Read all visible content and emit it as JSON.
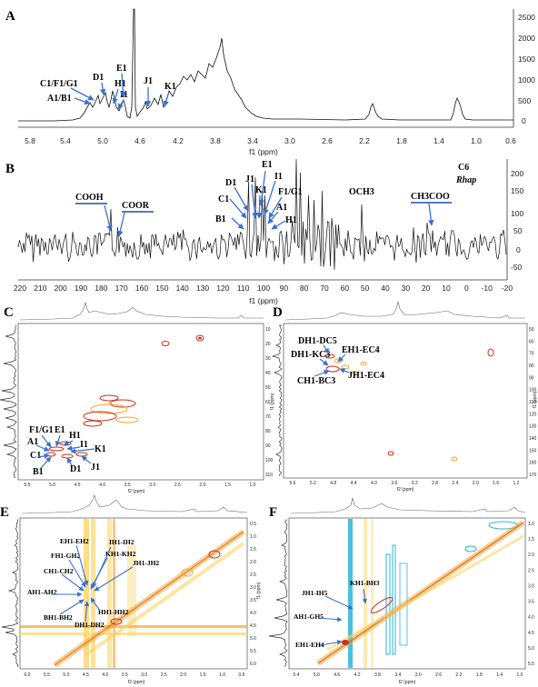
{
  "panels": {
    "A": {
      "letter": "A",
      "xticks": [
        "5.8",
        "5.4",
        "5.0",
        "4.6",
        "4.2",
        "3.8",
        "3.4",
        "3.0",
        "2.6",
        "2.2",
        "1.8",
        "1.4",
        "1.0",
        "0.6"
      ],
      "yticks": [
        "2500",
        "2000",
        "1500",
        "1000",
        "500",
        "0"
      ],
      "xlabel": "f1  (ppm)",
      "peaks": [
        "C1/F1/G1",
        "A1/B1",
        "D1",
        "H1",
        "I1",
        "E1",
        "J1",
        "K1"
      ]
    },
    "B": {
      "letter": "B",
      "xticks": [
        "220",
        "210",
        "200",
        "190",
        "180",
        "170",
        "160",
        "150",
        "140",
        "130",
        "120",
        "110",
        "100",
        "90",
        "80",
        "70",
        "60",
        "50",
        "40",
        "30",
        "20",
        "10",
        "0",
        "-10",
        "-20"
      ],
      "yticks": [
        "200",
        "150",
        "100",
        "50",
        "0",
        "-50"
      ],
      "xlabel": "f1  (ppm)",
      "labels": {
        "cooh": "COOH",
        "coor": "COOR",
        "och3": "OCH3",
        "ch3coo": "CH3COO",
        "c6": "C6",
        "rhap": "Rhap",
        "b1": "B1",
        "c1": "C1",
        "d1": "D1",
        "j1": "J1",
        "k1": "K1",
        "e1": "E1",
        "i1": "I1",
        "fg1": "F1/G1",
        "a1": "A1",
        "h1": "H1"
      }
    },
    "C": {
      "letter": "C",
      "xticks": [
        "5.5",
        "5.0",
        "4.5",
        "4.0",
        "3.5",
        "3.0",
        "2.5",
        "2.0",
        "1.5",
        "1.0"
      ],
      "xlabel": "f2 (ppm)",
      "yticks": [
        "10",
        "20",
        "30",
        "40",
        "50",
        "60",
        "70",
        "80",
        "90",
        "100",
        "110"
      ],
      "ylabel": "f1 (ppm)",
      "labels": [
        "F1/G1",
        "E1",
        "H1",
        "A1",
        "I1",
        "K1",
        "C1",
        "D1",
        "B1",
        "J1"
      ]
    },
    "D": {
      "letter": "D",
      "xticks": [
        "5.6",
        "5.2",
        "4.8",
        "4.4",
        "4.0",
        "3.6",
        "3.2",
        "2.8",
        "2.4",
        "2.0",
        "1.6",
        "1.2"
      ],
      "xlabel": "f2 (ppm)",
      "yticks": [
        "50",
        "60",
        "70",
        "80",
        "90",
        "100",
        "110",
        "120",
        "130",
        "140",
        "150",
        "160",
        "170"
      ],
      "ylabel": "f1 (ppm)",
      "labels": [
        "DH1-DC5",
        "DH1-KC3",
        "EH1-EC4",
        "JH1-EC4",
        "CH1-BC3"
      ]
    },
    "E": {
      "letter": "E",
      "xticks": [
        "6.0",
        "5.5",
        "5.0",
        "4.5",
        "4.0",
        "3.5",
        "3.0",
        "2.5",
        "2.0",
        "1.5",
        "1.0",
        "0.5"
      ],
      "xlabel": "f2 (ppm)",
      "yticks": [
        "0.5",
        "1.0",
        "1.5",
        "2.0",
        "2.5",
        "3.0",
        "3.5",
        "4.0",
        "4.5",
        "5.0",
        "5.5",
        "6.0"
      ],
      "ylabel": "f1 (ppm)",
      "labels": [
        "EH1-EH2",
        "FH1-GH2",
        "IH1-IH2",
        "KH1-KH2",
        "JH1-JH2",
        "CH1-CH2",
        "AH1-AH2",
        "BH1-BH2",
        "DH1-DH2",
        "HH1-HH2"
      ]
    },
    "F": {
      "letter": "F",
      "xticks": [
        "5.4",
        "5.0",
        "4.6",
        "4.2",
        "3.8",
        "3.4",
        "3.0",
        "2.6",
        "2.2",
        "1.8",
        "1.4",
        "1.0"
      ],
      "xlabel": "f2 (ppm)",
      "yticks": [
        "1.0",
        "1.5",
        "2.0",
        "2.5",
        "3.0",
        "3.5",
        "4.0",
        "4.5",
        "5.0",
        "5.5"
      ],
      "labels": [
        "KH1-BH3",
        "JH1-IH5",
        "AH1-GH5",
        "EH1-EH4"
      ]
    }
  },
  "colors": {
    "arrow": "#3a6fd1",
    "contour_red": "#c8301a",
    "contour_orange": "#f5a623",
    "contour_yellow": "#fbd568",
    "contour_cyan": "#29b6d8",
    "underline": "#1f4fb0"
  }
}
